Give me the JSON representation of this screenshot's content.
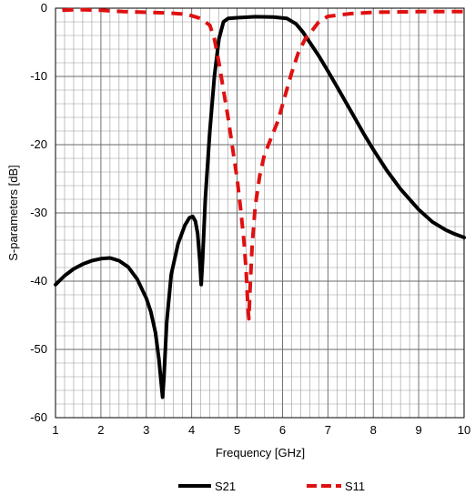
{
  "chart_data": {
    "type": "line",
    "title": "",
    "xlabel": "Frequency [GHz]",
    "ylabel": "S-parameters [dB]",
    "xlim": [
      1,
      10
    ],
    "ylim": [
      -60,
      0
    ],
    "x_ticks": [
      1,
      2,
      3,
      4,
      5,
      6,
      7,
      8,
      9,
      10
    ],
    "y_ticks": [
      0,
      -10,
      -20,
      -30,
      -40,
      -50,
      -60
    ],
    "x_tick_labels": [
      "1",
      "2",
      "3",
      "4",
      "5",
      "6",
      "7",
      "8",
      "9",
      "10"
    ],
    "y_tick_labels": [
      "0",
      "-10",
      "-20",
      "-30",
      "-40",
      "-50",
      "-60"
    ],
    "grid": true,
    "legend_position": "bottom",
    "series": [
      {
        "name": "S21",
        "color": "#000000",
        "style": "solid",
        "points": [
          [
            1.0,
            -40.5
          ],
          [
            1.2,
            -39.2
          ],
          [
            1.4,
            -38.2
          ],
          [
            1.6,
            -37.5
          ],
          [
            1.8,
            -37.0
          ],
          [
            2.0,
            -36.7
          ],
          [
            2.2,
            -36.6
          ],
          [
            2.4,
            -37.0
          ],
          [
            2.6,
            -37.9
          ],
          [
            2.8,
            -39.7
          ],
          [
            3.0,
            -42.5
          ],
          [
            3.1,
            -44.5
          ],
          [
            3.2,
            -47.5
          ],
          [
            3.28,
            -51.5
          ],
          [
            3.33,
            -55.0
          ],
          [
            3.36,
            -57.0
          ],
          [
            3.39,
            -54.0
          ],
          [
            3.45,
            -46.0
          ],
          [
            3.55,
            -39.0
          ],
          [
            3.7,
            -34.5
          ],
          [
            3.85,
            -31.8
          ],
          [
            3.95,
            -30.7
          ],
          [
            4.02,
            -30.5
          ],
          [
            4.08,
            -31.2
          ],
          [
            4.13,
            -33.0
          ],
          [
            4.18,
            -37.0
          ],
          [
            4.21,
            -40.5
          ],
          [
            4.24,
            -37.0
          ],
          [
            4.3,
            -28.0
          ],
          [
            4.4,
            -18.0
          ],
          [
            4.5,
            -10.0
          ],
          [
            4.6,
            -4.5
          ],
          [
            4.7,
            -2.0
          ],
          [
            4.8,
            -1.5
          ],
          [
            5.0,
            -1.4
          ],
          [
            5.4,
            -1.25
          ],
          [
            5.8,
            -1.3
          ],
          [
            6.1,
            -1.5
          ],
          [
            6.3,
            -2.3
          ],
          [
            6.45,
            -3.5
          ],
          [
            6.6,
            -5.0
          ],
          [
            6.8,
            -7.0
          ],
          [
            7.0,
            -9.2
          ],
          [
            7.2,
            -11.5
          ],
          [
            7.5,
            -15.0
          ],
          [
            7.8,
            -18.5
          ],
          [
            8.0,
            -20.7
          ],
          [
            8.3,
            -23.8
          ],
          [
            8.6,
            -26.5
          ],
          [
            9.0,
            -29.5
          ],
          [
            9.3,
            -31.3
          ],
          [
            9.6,
            -32.5
          ],
          [
            9.8,
            -33.1
          ],
          [
            10.0,
            -33.6
          ]
        ]
      },
      {
        "name": "S11",
        "color": "#e01010",
        "style": "dashed",
        "points": [
          [
            1.15,
            -0.3
          ],
          [
            1.5,
            -0.2
          ],
          [
            2.0,
            -0.3
          ],
          [
            2.5,
            -0.5
          ],
          [
            3.0,
            -0.6
          ],
          [
            3.5,
            -0.7
          ],
          [
            3.9,
            -0.9
          ],
          [
            4.2,
            -1.5
          ],
          [
            4.4,
            -2.5
          ],
          [
            4.5,
            -4.5
          ],
          [
            4.6,
            -8.0
          ],
          [
            4.7,
            -12.0
          ],
          [
            4.8,
            -16.0
          ],
          [
            4.9,
            -20.5
          ],
          [
            5.0,
            -25.0
          ],
          [
            5.08,
            -29.5
          ],
          [
            5.15,
            -34.0
          ],
          [
            5.2,
            -38.5
          ],
          [
            5.24,
            -44.0
          ],
          [
            5.26,
            -45.5
          ],
          [
            5.28,
            -42.0
          ],
          [
            5.33,
            -35.0
          ],
          [
            5.4,
            -29.0
          ],
          [
            5.5,
            -24.5
          ],
          [
            5.6,
            -21.5
          ],
          [
            5.75,
            -19.0
          ],
          [
            5.9,
            -16.5
          ],
          [
            6.05,
            -13.0
          ],
          [
            6.2,
            -9.5
          ],
          [
            6.35,
            -6.5
          ],
          [
            6.5,
            -4.5
          ],
          [
            6.65,
            -3.3
          ],
          [
            6.8,
            -2.0
          ],
          [
            7.0,
            -1.2
          ],
          [
            7.5,
            -0.8
          ],
          [
            8.0,
            -0.6
          ],
          [
            9.0,
            -0.5
          ],
          [
            10.0,
            -0.5
          ]
        ]
      }
    ]
  }
}
